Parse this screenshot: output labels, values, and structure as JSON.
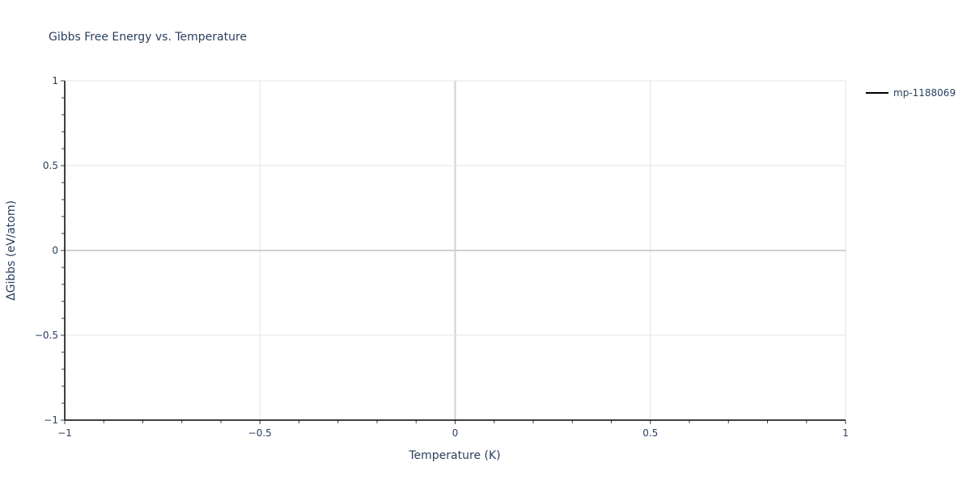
{
  "chart_data": {
    "type": "line",
    "title": "Gibbs Free Energy vs. Temperature",
    "xlabel": "Temperature (K)",
    "ylabel": "ΔGibbs (eV/atom)",
    "xlim": [
      -1,
      1
    ],
    "ylim": [
      -1,
      1
    ],
    "x_ticks": [
      -1,
      -0.5,
      0,
      0.5,
      1
    ],
    "y_ticks": [
      -1,
      -0.5,
      0,
      0.5,
      1
    ],
    "x_tick_labels": [
      "−1",
      "−0.5",
      "0",
      "0.5",
      "1"
    ],
    "y_tick_labels": [
      "−1",
      "−0.5",
      "0",
      "0.5",
      "1"
    ],
    "grid": true,
    "legend_position": "top-right",
    "series": [
      {
        "name": "mp-1188069",
        "color": "#000000",
        "x": [],
        "y": []
      }
    ]
  }
}
